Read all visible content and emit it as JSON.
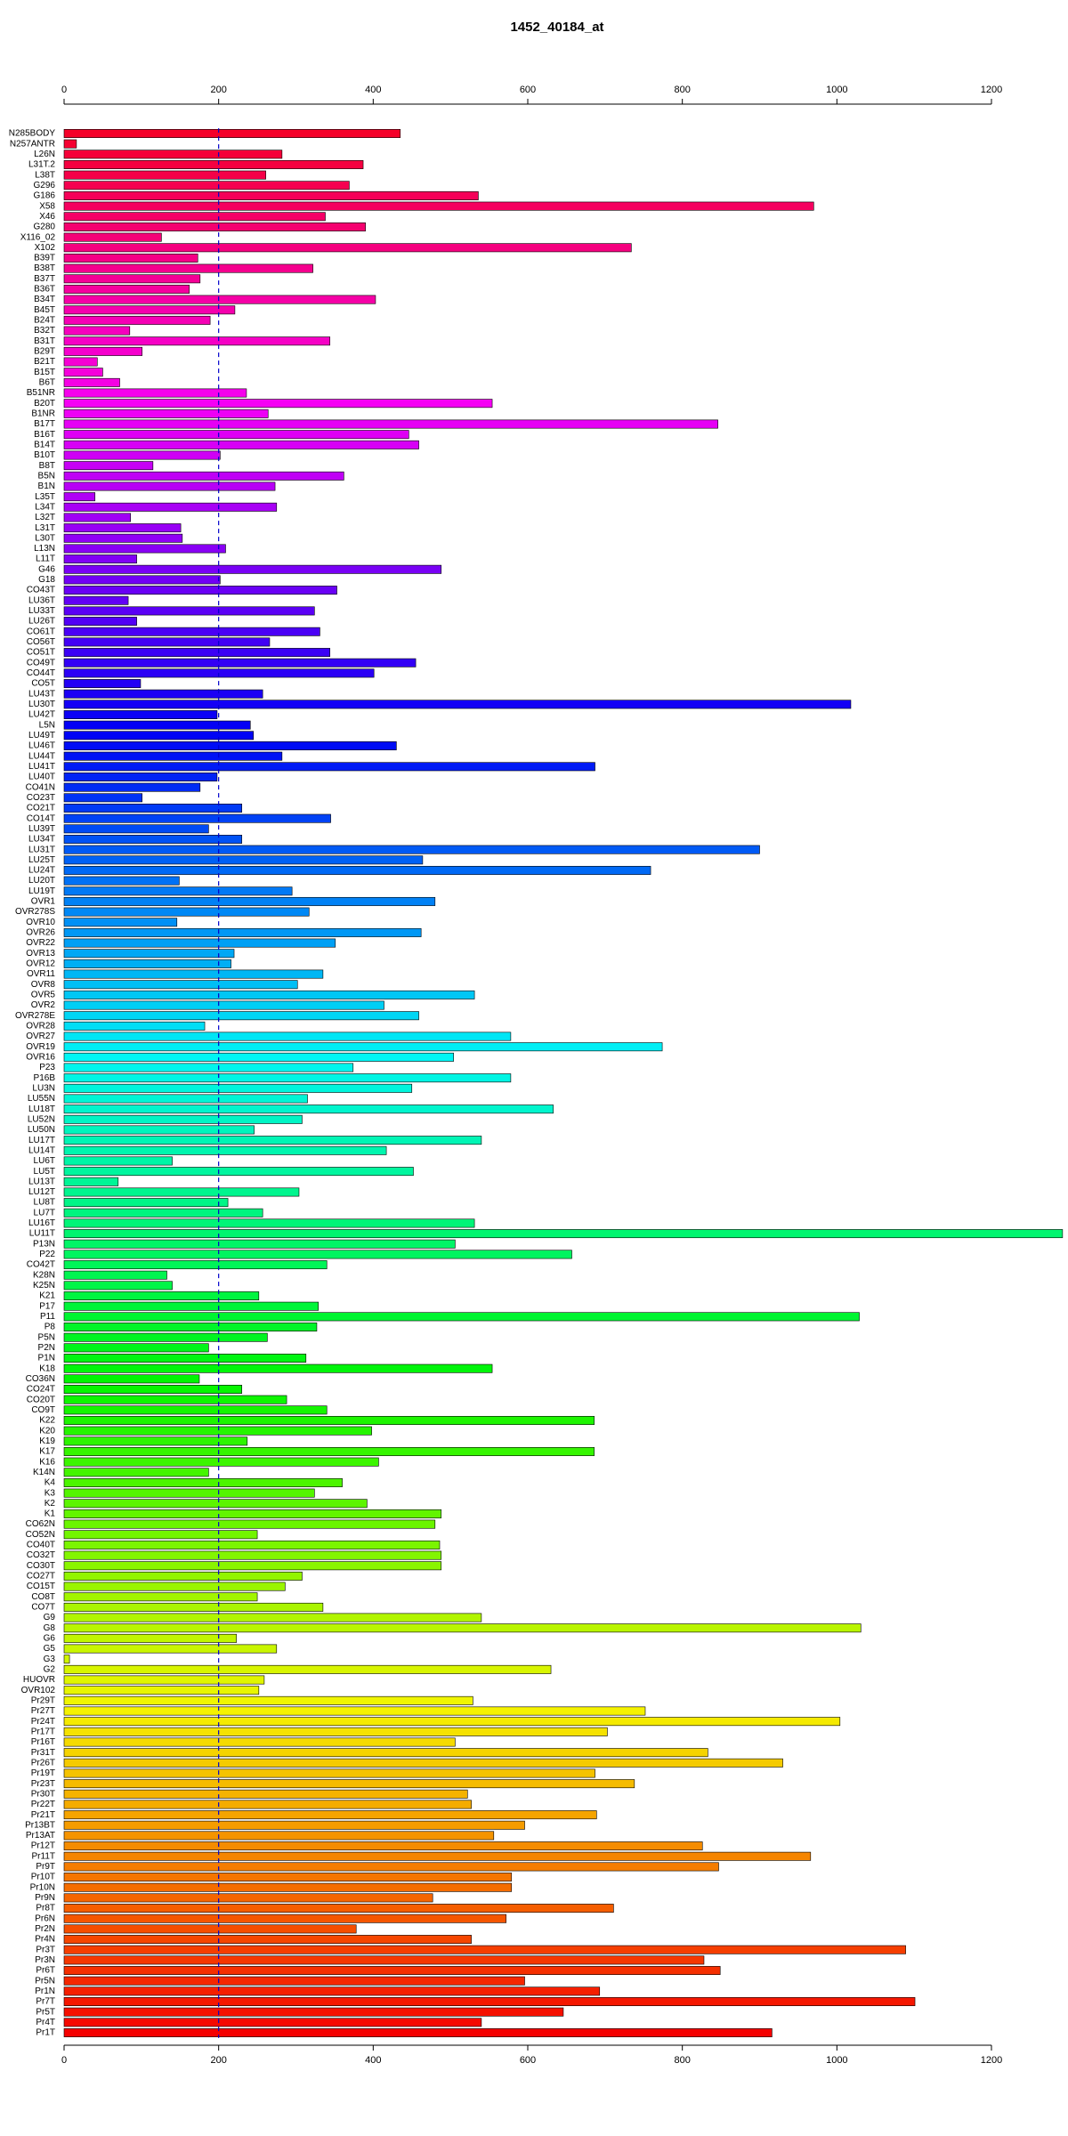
{
  "chart_data": {
    "type": "barh",
    "title": "1452_40184_at",
    "palette": "rainbow",
    "xlim": [
      0,
      1200
    ],
    "xticks": [
      0,
      200,
      400,
      600,
      800,
      1000,
      1200
    ],
    "reference_line": 200,
    "categories": [
      "N285BODY",
      "N257ANTR",
      "L26N",
      "L31T.2",
      "L38T",
      "G296",
      "G186",
      "X58",
      "X46",
      "G280",
      "X116_02",
      "X102",
      "B39T",
      "B38T",
      "B37T",
      "B36T",
      "B34T",
      "B45T",
      "B24T",
      "B32T",
      "B31T",
      "B29T",
      "B21T",
      "B15T",
      "B6T",
      "B51NR",
      "B20T",
      "B1NR",
      "B17T",
      "B16T",
      "B14T",
      "B10T",
      "B8T",
      "B5N",
      "B1N",
      "L35T",
      "L34T",
      "L32T",
      "L31T",
      "L30T",
      "L13N",
      "L11T",
      "G46",
      "G18",
      "CO43T",
      "LU36T",
      "LU33T",
      "LU26T",
      "CO61T",
      "CO56T",
      "CO51T",
      "CO49T",
      "CO44T",
      "CO5T",
      "LU43T",
      "LU30T",
      "LU42T",
      "L5N",
      "LU49T",
      "LU46T",
      "LU44T",
      "LU41T",
      "LU40T",
      "CO41N",
      "CO23T",
      "CO21T",
      "CO14T",
      "LU39T",
      "LU34T",
      "LU31T",
      "LU25T",
      "LU24T",
      "LU20T",
      "LU19T",
      "OVR1",
      "OVR278S",
      "OVR10",
      "OVR26",
      "OVR22",
      "OVR13",
      "OVR12",
      "OVR11",
      "OVR8",
      "OVR5",
      "OVR2",
      "OVR278E",
      "OVR28",
      "OVR27",
      "OVR19",
      "OVR16",
      "P23",
      "P16B",
      "LU3N",
      "LU55N",
      "LU18T",
      "LU52N",
      "LU50N",
      "LU17T",
      "LU14T",
      "LU6T",
      "LU5T",
      "LU13T",
      "LU12T",
      "LU8T",
      "LU7T",
      "LU16T",
      "LU11T",
      "P13N",
      "P22",
      "CO42T",
      "K28N",
      "K25N",
      "K21",
      "P17",
      "P11",
      "P8",
      "P5N",
      "P2N",
      "P1N",
      "K18",
      "CO36N",
      "CO24T",
      "CO20T",
      "CO9T",
      "K22",
      "K20",
      "K19",
      "K17",
      "K16",
      "K14N",
      "K4",
      "K3",
      "K2",
      "K1",
      "CO62N",
      "CO52N",
      "CO40T",
      "CO32T",
      "CO30T",
      "CO27T",
      "CO15T",
      "CO8T",
      "CO7T",
      "G9",
      "G8",
      "G6",
      "G5",
      "G3",
      "G2",
      "HUOVR",
      "OVR102",
      "Pr29T",
      "Pr27T",
      "Pr24T",
      "Pr17T",
      "Pr16T",
      "Pr31T",
      "Pr26T",
      "Pr19T",
      "Pr23T",
      "Pr30T",
      "Pr22T",
      "Pr21T",
      "Pr13BT",
      "Pr13AT",
      "Pr12T",
      "Pr11T",
      "Pr9T",
      "Pr10T",
      "Pr10N",
      "Pr9N",
      "Pr8T",
      "Pr6N",
      "Pr2N",
      "Pr4N",
      "Pr3T",
      "Pr3N",
      "Pr6T",
      "Pr5N",
      "Pr1N",
      "Pr7T",
      "Pr5T",
      "Pr4T",
      "Pr1T"
    ],
    "values": [
      435,
      16,
      282,
      387,
      261,
      369,
      536,
      970,
      338,
      390,
      126,
      734,
      173,
      322,
      176,
      162,
      403,
      221,
      189,
      85,
      344,
      101,
      43,
      50,
      72,
      236,
      554,
      264,
      846,
      446,
      459,
      202,
      115,
      362,
      273,
      40,
      275,
      86,
      151,
      153,
      209,
      94,
      488,
      202,
      353,
      83,
      324,
      94,
      331,
      266,
      344,
      455,
      401,
      99,
      257,
      1018,
      198,
      241,
      245,
      430,
      282,
      687,
      198,
      176,
      101,
      230,
      345,
      187,
      230,
      900,
      464,
      759,
      149,
      295,
      480,
      317,
      146,
      462,
      351,
      220,
      216,
      335,
      302,
      531,
      414,
      459,
      182,
      578,
      774,
      504,
      374,
      578,
      450,
      315,
      633,
      308,
      246,
      540,
      417,
      140,
      452,
      70,
      304,
      212,
      257,
      531,
      1292,
      506,
      657,
      340,
      133,
      140,
      252,
      329,
      1029,
      327,
      263,
      187,
      313,
      554,
      175,
      230,
      288,
      340,
      686,
      398,
      237,
      686,
      407,
      187,
      360,
      324,
      392,
      488,
      480,
      250,
      486,
      488,
      488,
      308,
      286,
      250,
      335,
      540,
      1031,
      223,
      275,
      7,
      630,
      259,
      252,
      529,
      752,
      1004,
      703,
      506,
      833,
      930,
      687,
      738,
      522,
      527,
      689,
      596,
      556,
      826,
      966,
      847,
      579,
      579,
      477,
      711,
      572,
      378,
      527,
      1089,
      828,
      849,
      596,
      693,
      1101,
      646,
      540,
      916
    ]
  }
}
